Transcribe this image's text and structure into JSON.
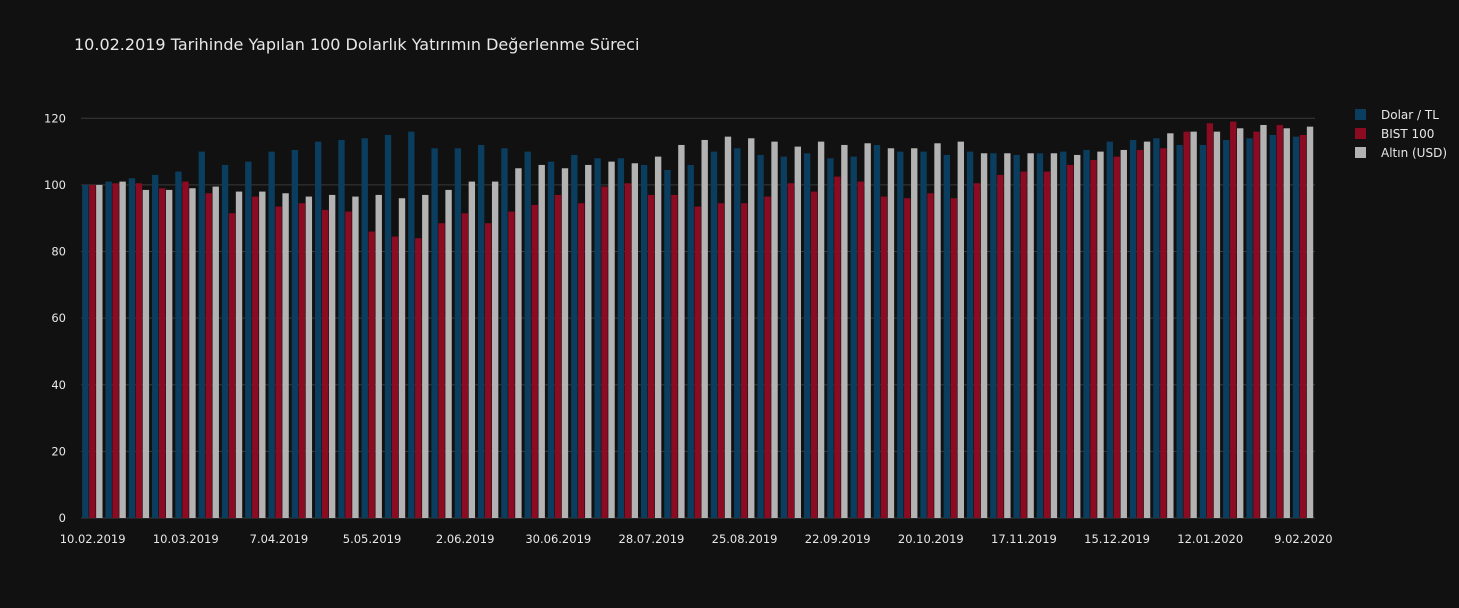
{
  "chart_data": {
    "type": "bar",
    "title": "10.02.2019 Tarihinde Yapılan 100 Dolarlık Yatırımın Değerlenme  Süreci",
    "xlabel": "",
    "ylabel": "",
    "ylim": [
      0,
      130
    ],
    "yticks": [
      0,
      20,
      40,
      60,
      80,
      100,
      120
    ],
    "grid": true,
    "legend_position": "top-right",
    "x_tick_labels": [
      "10.02.2019",
      "10.03.2019",
      "7.04.2019",
      "5.05.2019",
      "2.06.2019",
      "30.06.2019",
      "28.07.2019",
      "25.08.2019",
      "22.09.2019",
      "20.10.2019",
      "17.11.2019",
      "15.12.2019",
      "12.01.2020",
      "9.02.2020"
    ],
    "x_tick_every": 4,
    "series": [
      {
        "name": "Dolar / TL",
        "color": "#0b3d5e",
        "values": [
          100,
          101,
          102,
          103,
          104,
          110,
          106,
          107,
          110,
          110.5,
          113,
          113.5,
          114,
          115,
          116,
          111,
          111,
          112,
          111,
          110,
          107,
          109,
          108,
          108,
          106,
          104.5,
          106,
          110,
          111,
          109,
          108.5,
          109.5,
          108,
          108.5,
          112,
          110,
          110,
          109,
          110,
          109.5,
          109,
          109.5,
          110,
          110.5,
          113,
          113.5,
          114,
          112,
          112,
          113.5,
          114,
          115,
          114.5
        ]
      },
      {
        "name": "BIST 100",
        "color": "#8b0b22",
        "values": [
          100,
          100.5,
          100.5,
          99,
          101,
          97.5,
          91.5,
          96.5,
          93.5,
          94.5,
          92.5,
          92,
          86,
          84.5,
          84,
          88.5,
          91.5,
          88.5,
          92,
          94,
          97,
          94.5,
          99.5,
          100.5,
          97,
          97,
          93.5,
          94.5,
          94.5,
          96.5,
          100.5,
          98,
          102.5,
          101,
          96.5,
          96,
          97.5,
          96,
          100.5,
          103,
          104,
          104,
          106,
          107.5,
          108.5,
          110.5,
          111,
          116,
          118.5,
          119,
          116,
          118,
          115
        ]
      },
      {
        "name": "Altın (USD)",
        "color": "#b3b3b3",
        "values": [
          100,
          101,
          98.5,
          98.5,
          99,
          99.5,
          98,
          98,
          97.5,
          96.5,
          97,
          96.5,
          97,
          96,
          97,
          98.5,
          101,
          101,
          105,
          106,
          105,
          106,
          107,
          106.5,
          108.5,
          112,
          113.5,
          114.5,
          114,
          113,
          111.5,
          113,
          112,
          112.5,
          111,
          111,
          112.5,
          113,
          109.5,
          109.5,
          109.5,
          109.5,
          109,
          110,
          110.5,
          113,
          115.5,
          116,
          116,
          117,
          118,
          117,
          117.5
        ]
      }
    ]
  }
}
